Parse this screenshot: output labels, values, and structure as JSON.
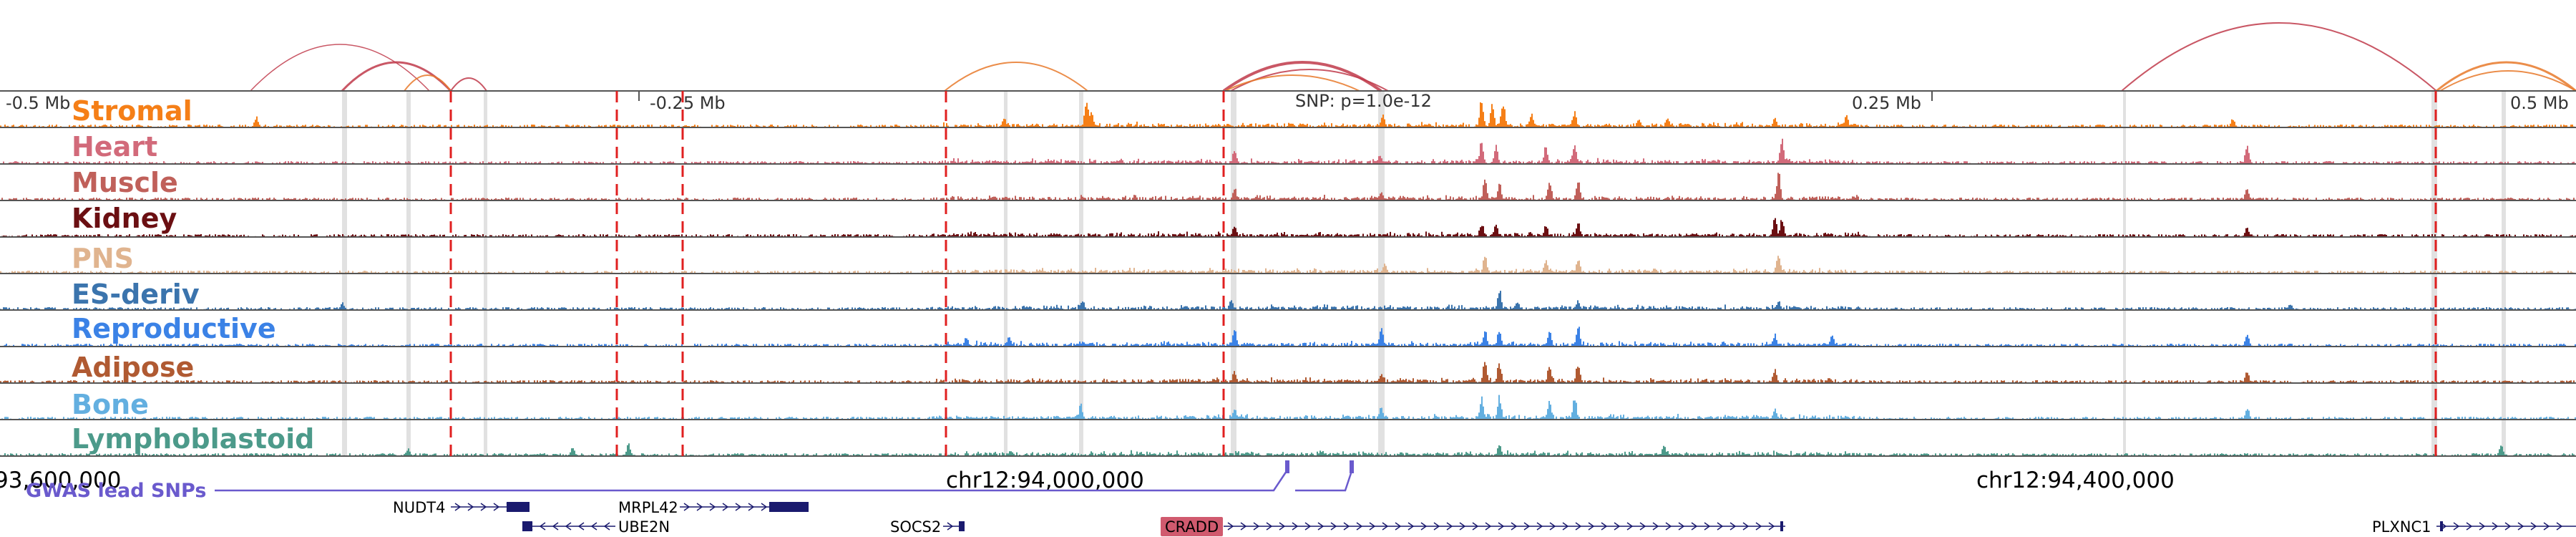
{
  "scale_labels": [
    "-0.5 Mb",
    "-0.25 Mb",
    "0.25 Mb",
    "0.5 Mb"
  ],
  "snp_label": "SNP: p=1.0e-12",
  "coordinates": [
    "93,600,000",
    "chr12:94,000,000",
    "chr12:94,400,000"
  ],
  "gwas_label": "GWAS lead SNPs",
  "tracks": [
    {
      "name": "Stromal",
      "color": "#f57f17"
    },
    {
      "name": "Heart",
      "color": "#d26a7a"
    },
    {
      "name": "Muscle",
      "color": "#c0605a"
    },
    {
      "name": "Kidney",
      "color": "#6b0f12"
    },
    {
      "name": "PNS",
      "color": "#e0b48f"
    },
    {
      "name": "ES-deriv",
      "color": "#3b74ad"
    },
    {
      "name": "Reproductive",
      "color": "#3b82e6"
    },
    {
      "name": "Adipose",
      "color": "#b05a32"
    },
    {
      "name": "Bone",
      "color": "#63afe0"
    },
    {
      "name": "Lymphoblastoid",
      "color": "#4c9a8a"
    }
  ],
  "genes": [
    {
      "name": "NUDT4",
      "strand": "+"
    },
    {
      "name": "MRPL42",
      "strand": "+"
    },
    {
      "name": "UBE2N",
      "strand": "-"
    },
    {
      "name": "SOCS2",
      "strand": "+"
    },
    {
      "name": "CRADD",
      "strand": "+",
      "highlighted": true
    },
    {
      "name": "PLXNC1",
      "strand": "+"
    }
  ],
  "colors": {
    "gene": "#1a1a6e",
    "gwas": "#6a5acd",
    "highlight_gene_bg": "#d05a6e",
    "dashed_marker": "#e02020",
    "arc_red": "#c0394a",
    "arc_orange": "#e8792a"
  }
}
